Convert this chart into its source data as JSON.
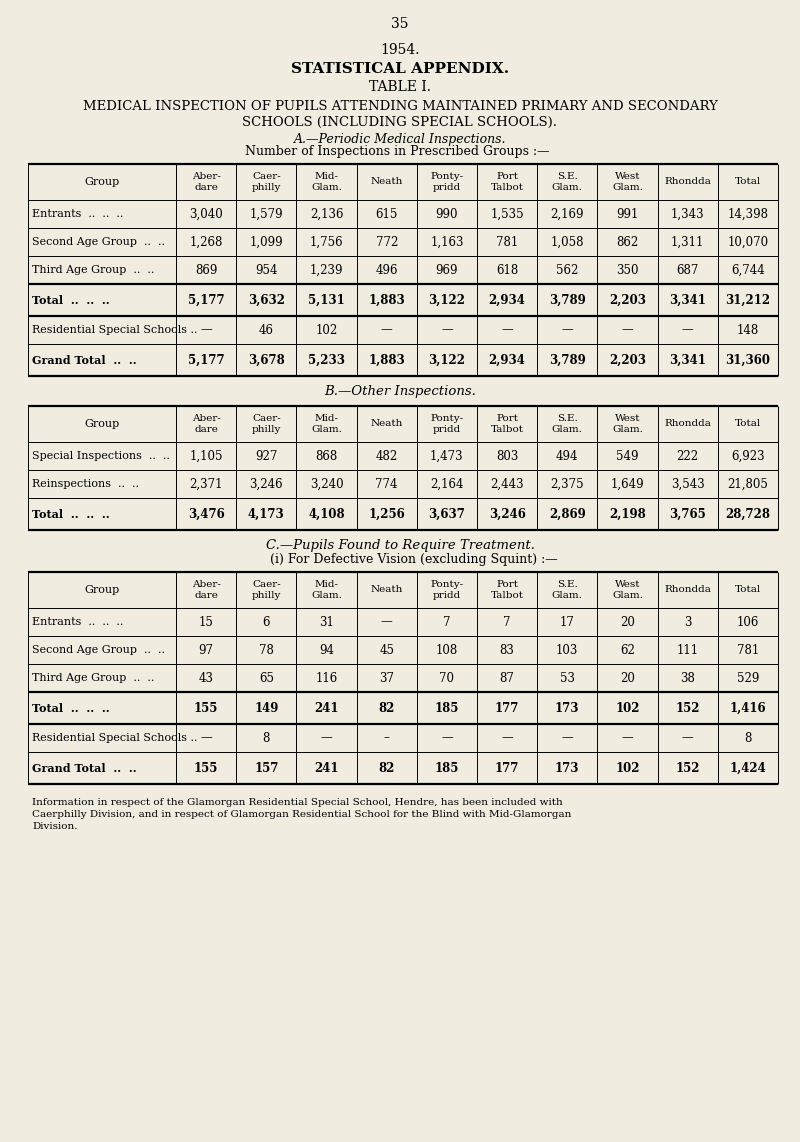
{
  "bg_color": "#f0ece0",
  "page_number": "35",
  "year": "1954.",
  "subtitle1": "STATISTICAL APPENDIX.",
  "subtitle2": "TABLE I.",
  "title_line1": "MEDICAL INSPECTION OF PUPILS ATTENDING MAINTAINED PRIMARY AND SECONDARY",
  "title_line2": "SCHOOLS (INCLUDING SPECIAL SCHOOLS).",
  "section_a_title": "A.—Periodic Medical Inspections.",
  "section_a_sub": "Number of Inspections in Prescribed Groups :—",
  "table_a_headers": [
    "Aber-\ndare",
    "Caer-\nphilly",
    "Mid-\nGlam.",
    "Neath",
    "Ponty-\npridd",
    "Port\nTalbot",
    "S.E.\nGlam.",
    "West\nGlam.",
    "Rhondda",
    "Total"
  ],
  "table_a_rows": [
    [
      "Entrants  ..  ..  ..",
      "3,040",
      "1,579",
      "2,136",
      "615",
      "990",
      "1,535",
      "2,169",
      "991",
      "1,343",
      "14,398"
    ],
    [
      "Second Age Group  ..  ..",
      "1,268",
      "1,099",
      "1,756",
      "772",
      "1,163",
      "781",
      "1,058",
      "862",
      "1,311",
      "10,070"
    ],
    [
      "Third Age Group  ..  ..",
      "869",
      "954",
      "1,239",
      "496",
      "969",
      "618",
      "562",
      "350",
      "687",
      "6,744"
    ],
    [
      "Total  ..  ..  ..",
      "5,177",
      "3,632",
      "5,131",
      "1,883",
      "3,122",
      "2,934",
      "3,789",
      "2,203",
      "3,341",
      "31,212"
    ],
    [
      "Residential Special Schools ..",
      "—",
      "46",
      "102",
      "—",
      "—",
      "—",
      "—",
      "—",
      "—",
      "148"
    ],
    [
      "Grand Total  ..  ..",
      "5,177",
      "3,678",
      "5,233",
      "1,883",
      "3,122",
      "2,934",
      "3,789",
      "2,203",
      "3,341",
      "31,360"
    ]
  ],
  "section_b_title": "B.—Other Inspections.",
  "table_b_headers": [
    "Aber-\ndare",
    "Caer-\nphilly",
    "Mid-\nGlam.",
    "Neath",
    "Ponty-\npridd",
    "Port\nTalbot",
    "S.E.\nGlam.",
    "West\nGlam.",
    "Rhondda",
    "Total"
  ],
  "table_b_rows": [
    [
      "Special Inspections  ..  ..",
      "1,105",
      "927",
      "868",
      "482",
      "1,473",
      "803",
      "494",
      "549",
      "222",
      "6,923"
    ],
    [
      "Reinspections  ..  ..",
      "2,371",
      "3,246",
      "3,240",
      "774",
      "2,164",
      "2,443",
      "2,375",
      "1,649",
      "3,543",
      "21,805"
    ],
    [
      "Total  ..  ..  ..",
      "3,476",
      "4,173",
      "4,108",
      "1,256",
      "3,637",
      "3,246",
      "2,869",
      "2,198",
      "3,765",
      "28,728"
    ]
  ],
  "section_c_title": "C.—Pupils Found to Require Treatment.",
  "section_c_sub": "(i) For Defective Vision (excluding Squint) :—",
  "table_c_headers": [
    "Aber-\ndare",
    "Caer-\nphilly",
    "Mid-\nGlam.",
    "Neath",
    "Ponty-\npridd",
    "Port\nTalbot",
    "S.E.\nGlam.",
    "West\nGlam.",
    "Rhondda",
    "Total"
  ],
  "table_c_rows": [
    [
      "Entrants  ..  ..  ..",
      "15",
      "6",
      "31",
      "—",
      "7",
      "7",
      "17",
      "20",
      "3",
      "106"
    ],
    [
      "Second Age Group  ..  ..",
      "97",
      "78",
      "94",
      "45",
      "108",
      "83",
      "103",
      "62",
      "111",
      "781"
    ],
    [
      "Third Age Group  ..  ..",
      "43",
      "65",
      "116",
      "37",
      "70",
      "87",
      "53",
      "20",
      "38",
      "529"
    ],
    [
      "Total  ..  ..  ..",
      "155",
      "149",
      "241",
      "82",
      "185",
      "177",
      "173",
      "102",
      "152",
      "1,416"
    ],
    [
      "Residential Special Schools ..",
      "—",
      "8",
      "—",
      "–",
      "—",
      "—",
      "—",
      "—",
      "—",
      "8"
    ],
    [
      "Grand Total  ..  ..",
      "155",
      "157",
      "241",
      "82",
      "185",
      "177",
      "173",
      "102",
      "152",
      "1,424"
    ]
  ],
  "footnote_line1": "Information in respect of the Glamorgan Residential Special School, Hendre, has been included with",
  "footnote_line2": "Caerphilly Division, and in respect of Glamorgan Residential School for the Blind with Mid-Glamorgan",
  "footnote_line3": "Division."
}
